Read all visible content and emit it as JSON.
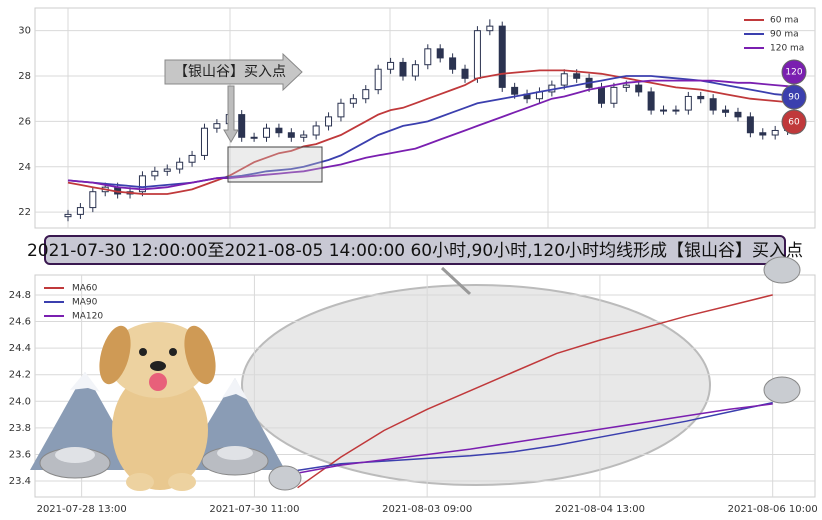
{
  "chart_data": [
    {
      "type": "candlestick",
      "open": [
        21.8,
        21.9,
        22.2,
        22.9,
        23.1,
        22.8,
        22.9,
        23.6,
        23.8,
        23.9,
        24.2,
        24.5,
        25.7,
        25.9,
        26.3,
        25.3,
        25.3,
        25.7,
        25.5,
        25.3,
        25.4,
        25.8,
        26.2,
        26.8,
        27.0,
        27.4,
        28.3,
        28.6,
        28.0,
        28.5,
        29.2,
        28.8,
        28.3,
        27.9,
        30.0,
        30.2,
        27.5,
        27.2,
        27.0,
        27.3,
        27.6,
        28.1,
        27.9,
        27.5,
        26.8,
        27.5,
        27.6,
        27.3,
        26.5,
        26.5,
        26.5,
        27.1,
        27.0,
        26.5,
        26.4,
        26.2,
        25.5,
        25.4,
        25.6,
        25.8
      ],
      "high": [
        22.1,
        22.4,
        23.1,
        23.3,
        23.3,
        23.1,
        23.8,
        24.0,
        24.1,
        24.4,
        24.7,
        25.9,
        26.1,
        26.5,
        26.5,
        25.5,
        25.9,
        25.9,
        25.7,
        25.6,
        26.0,
        26.4,
        27.0,
        27.2,
        27.6,
        28.5,
        28.8,
        28.8,
        28.7,
        29.4,
        29.4,
        29.0,
        28.5,
        30.2,
        30.5,
        30.4,
        27.7,
        27.4,
        27.5,
        27.8,
        28.3,
        28.3,
        28.1,
        27.7,
        27.7,
        27.8,
        27.8,
        27.5,
        26.7,
        26.7,
        27.3,
        27.3,
        27.2,
        26.7,
        26.6,
        26.4,
        25.7,
        25.8,
        26.0,
        26.0
      ],
      "low": [
        21.6,
        21.7,
        22.0,
        22.7,
        22.6,
        22.6,
        22.7,
        23.4,
        23.6,
        23.7,
        24.0,
        24.3,
        25.5,
        25.7,
        25.1,
        25.1,
        25.1,
        25.3,
        25.1,
        25.1,
        25.2,
        25.6,
        26.0,
        26.6,
        26.8,
        27.2,
        28.1,
        27.8,
        27.8,
        28.3,
        28.6,
        28.1,
        27.7,
        27.7,
        29.8,
        27.3,
        27.0,
        26.8,
        26.8,
        27.1,
        27.4,
        27.7,
        27.3,
        26.6,
        26.6,
        27.3,
        27.1,
        26.3,
        26.3,
        26.3,
        26.3,
        26.8,
        26.3,
        26.2,
        26.0,
        25.3,
        25.2,
        25.2,
        25.4,
        25.5
      ],
      "close": [
        21.9,
        22.2,
        22.9,
        23.1,
        22.8,
        22.9,
        23.6,
        23.8,
        23.9,
        24.2,
        24.5,
        25.7,
        25.9,
        26.3,
        25.3,
        25.3,
        25.7,
        25.5,
        25.3,
        25.4,
        25.8,
        26.2,
        26.8,
        27.0,
        27.4,
        28.3,
        28.6,
        28.0,
        28.5,
        29.2,
        28.8,
        28.3,
        27.9,
        30.0,
        30.2,
        27.5,
        27.2,
        27.0,
        27.3,
        27.6,
        28.1,
        27.9,
        27.5,
        26.8,
        27.5,
        27.6,
        27.3,
        26.5,
        26.5,
        26.5,
        27.1,
        27.0,
        26.5,
        26.4,
        26.2,
        25.5,
        25.4,
        25.6,
        25.8,
        25.7
      ],
      "candle_color": "#2b3350",
      "ylim": [
        21.3,
        31
      ],
      "yticks": [
        22,
        24,
        26,
        28,
        30
      ],
      "grid": true,
      "legend": "upper right",
      "annotation": "【银山谷】买入点",
      "series": [
        {
          "name": "60 ma",
          "color": "#c0393b",
          "end_label": "60",
          "values": [
            23.3,
            23.2,
            23.1,
            23.0,
            22.9,
            22.85,
            22.8,
            22.8,
            22.8,
            22.9,
            23.0,
            23.2,
            23.4,
            23.6,
            23.9,
            24.2,
            24.4,
            24.6,
            24.7,
            24.9,
            25.0,
            25.2,
            25.4,
            25.7,
            26.0,
            26.3,
            26.5,
            26.6,
            26.8,
            27.0,
            27.2,
            27.4,
            27.6,
            27.9,
            28.0,
            28.1,
            28.15,
            28.2,
            28.25,
            28.25,
            28.25,
            28.2,
            28.15,
            28.1,
            28.0,
            27.9,
            27.8,
            27.7,
            27.6,
            27.5,
            27.45,
            27.4,
            27.3,
            27.2,
            27.1,
            27.0,
            26.95,
            26.9,
            26.85,
            26.8
          ]
        },
        {
          "name": "90 ma",
          "color": "#3b3fae",
          "end_label": "90",
          "values": [
            23.4,
            23.35,
            23.3,
            23.25,
            23.2,
            23.15,
            23.1,
            23.15,
            23.2,
            23.25,
            23.3,
            23.4,
            23.5,
            23.55,
            23.6,
            23.7,
            23.8,
            23.85,
            23.9,
            24.0,
            24.15,
            24.3,
            24.5,
            24.8,
            25.1,
            25.4,
            25.6,
            25.8,
            25.9,
            26.0,
            26.2,
            26.4,
            26.6,
            26.8,
            26.9,
            27.0,
            27.1,
            27.2,
            27.3,
            27.4,
            27.5,
            27.6,
            27.7,
            27.8,
            27.9,
            28.0,
            28.0,
            28.0,
            27.95,
            27.9,
            27.85,
            27.8,
            27.7,
            27.6,
            27.5,
            27.4,
            27.3,
            27.2,
            27.15,
            27.1
          ]
        },
        {
          "name": "120 ma",
          "color": "#7a1fb0",
          "end_label": "120",
          "values": [
            23.4,
            23.35,
            23.3,
            23.2,
            23.1,
            23.05,
            23.0,
            23.05,
            23.1,
            23.2,
            23.3,
            23.4,
            23.5,
            23.5,
            23.55,
            23.6,
            23.65,
            23.7,
            23.75,
            23.8,
            23.9,
            24.0,
            24.1,
            24.25,
            24.4,
            24.5,
            24.6,
            24.7,
            24.8,
            25.0,
            25.2,
            25.4,
            25.6,
            25.8,
            26.0,
            26.2,
            26.4,
            26.6,
            26.8,
            27.0,
            27.1,
            27.25,
            27.4,
            27.5,
            27.6,
            27.7,
            27.75,
            27.8,
            27.8,
            27.8,
            27.8,
            27.8,
            27.8,
            27.75,
            27.7,
            27.7,
            27.65,
            27.6,
            27.55,
            27.5
          ]
        }
      ]
    },
    {
      "type": "line",
      "title": "2021-07-30 12:00:00至2021-08-05 14:00:00 60小时,90小时,120小时均线形成【银山谷】买入点",
      "x": [
        25,
        30,
        35,
        40,
        45,
        50,
        55,
        60,
        65,
        70,
        75,
        80
      ],
      "xlim": [
        -5.4,
        84.9
      ],
      "xticks": [
        {
          "value": 0,
          "label": "2021-07-28 13:00"
        },
        {
          "value": 20,
          "label": "2021-07-30 11:00"
        },
        {
          "value": 40,
          "label": "2021-08-03 09:00"
        },
        {
          "value": 60,
          "label": "2021-08-04 13:00"
        },
        {
          "value": 80,
          "label": "2021-08-06 10:00"
        }
      ],
      "ylim": [
        23.28,
        24.95
      ],
      "yticks": [
        23.4,
        23.6,
        23.8,
        {
          "value": 24,
          "label": "24.0"
        },
        24.2,
        24.4,
        24.6,
        24.8
      ],
      "grid": true,
      "legend": "upper left",
      "series": [
        {
          "name": "MA60",
          "color": "#c0393b",
          "values": [
            23.35,
            23.58,
            23.78,
            23.94,
            24.08,
            24.22,
            24.36,
            24.46,
            24.55,
            24.64,
            24.72,
            24.8
          ]
        },
        {
          "name": "MA90",
          "color": "#3b3fae",
          "values": [
            23.48,
            23.53,
            23.55,
            23.57,
            23.59,
            23.62,
            23.67,
            23.73,
            23.79,
            23.85,
            23.92,
            23.99
          ]
        },
        {
          "name": "MA120",
          "color": "#7a1fb0",
          "values": [
            23.46,
            23.52,
            23.56,
            23.6,
            23.64,
            23.69,
            23.74,
            23.79,
            23.84,
            23.89,
            23.94,
            23.98
          ]
        }
      ]
    }
  ]
}
